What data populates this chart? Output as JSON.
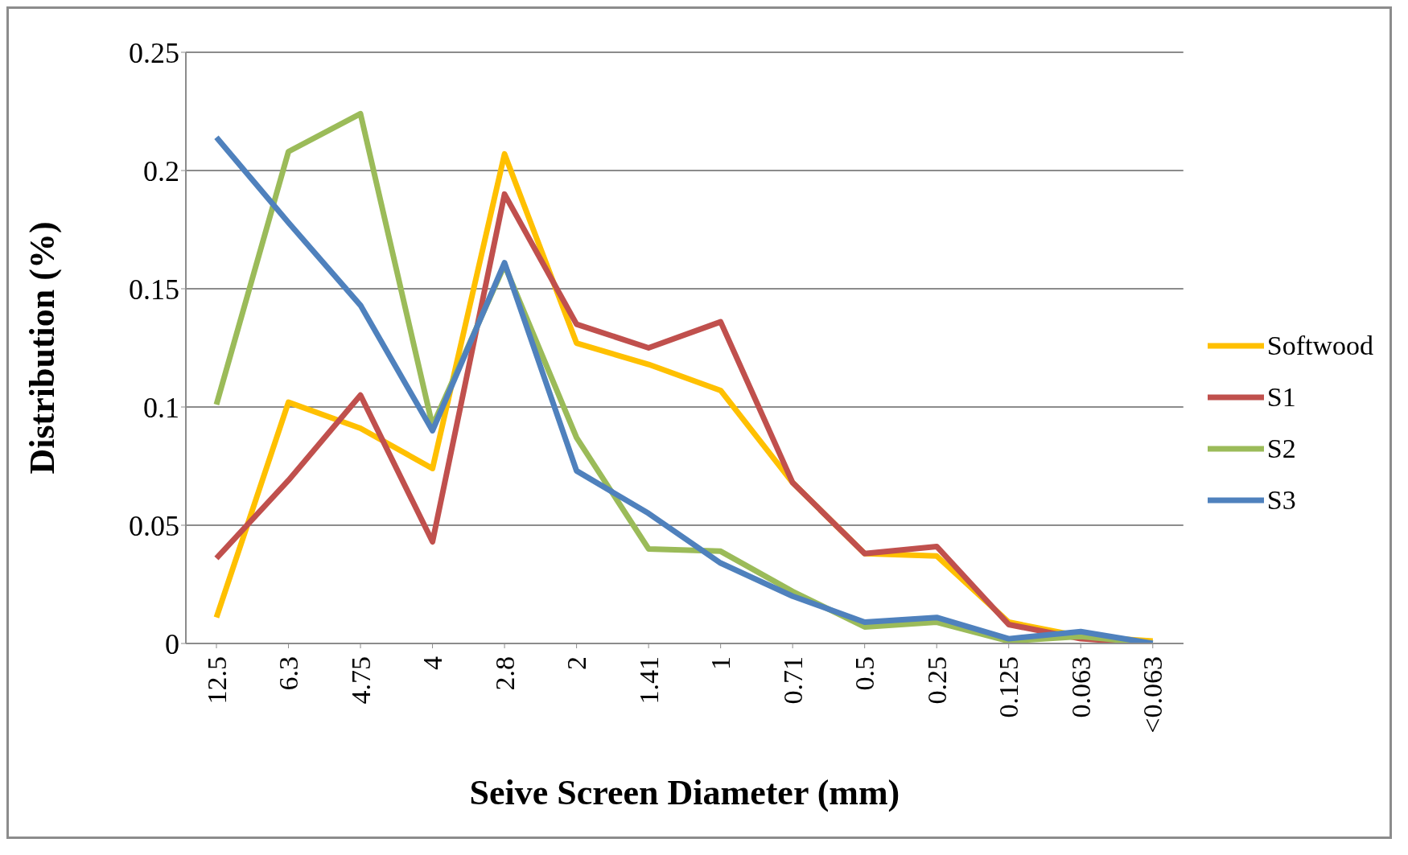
{
  "chart_data": {
    "type": "line",
    "xlabel": "Seive Screen Diameter (mm)",
    "ylabel": "Distribution (%)",
    "categories": [
      "12.5",
      "6.3",
      "4.75",
      "4",
      "2.8",
      "2",
      "1.41",
      "1",
      "0.71",
      "0.5",
      "0.25",
      "0.125",
      "0.063",
      "<0.063"
    ],
    "series": [
      {
        "name": "Softwood",
        "color": "#ffc000",
        "values": [
          0.011,
          0.102,
          0.091,
          0.074,
          0.207,
          0.127,
          0.118,
          0.107,
          0.068,
          0.038,
          0.037,
          0.009,
          0.003,
          0.001
        ]
      },
      {
        "name": "S1",
        "color": "#c0504d",
        "values": [
          0.036,
          0.069,
          0.105,
          0.043,
          0.19,
          0.135,
          0.125,
          0.136,
          0.068,
          0.038,
          0.041,
          0.008,
          0.002,
          0.0
        ]
      },
      {
        "name": "S2",
        "color": "#9bbb59",
        "values": [
          0.101,
          0.208,
          0.224,
          0.092,
          0.16,
          0.087,
          0.04,
          0.039,
          0.022,
          0.007,
          0.009,
          0.001,
          0.003,
          0.0
        ]
      },
      {
        "name": "S3",
        "color": "#4f81bd",
        "values": [
          0.214,
          0.178,
          0.143,
          0.09,
          0.161,
          0.073,
          0.055,
          0.034,
          0.02,
          0.009,
          0.011,
          0.002,
          0.005,
          0.0
        ]
      }
    ],
    "ylim": [
      0,
      0.25
    ],
    "yticks": [
      0,
      0.05,
      0.1,
      0.15,
      0.2,
      0.25
    ],
    "grid": "y",
    "legend": "right",
    "marker": "none",
    "line_style": "solid"
  }
}
